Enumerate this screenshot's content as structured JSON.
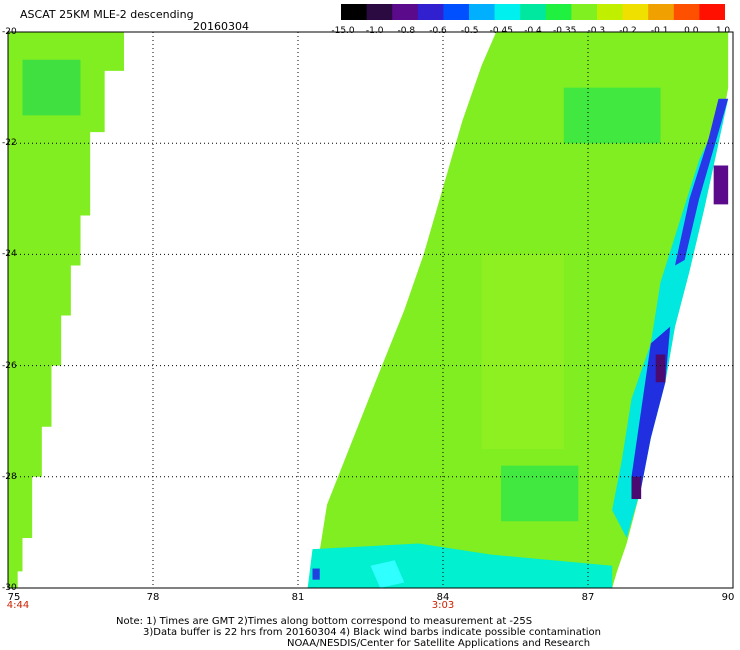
{
  "header": {
    "title": "ASCAT 25KM MLE-2 descending",
    "date": "20160304"
  },
  "colorbar": {
    "labels": [
      "-15.0",
      "-1.0",
      "-0.8",
      "-0.6",
      "-0.5",
      "-0.45",
      "-0.4",
      "-0.35",
      "-0.3",
      "-0.2",
      "-0.1",
      "0.0",
      "1.0"
    ],
    "colors": [
      "#000000",
      "#2a0a40",
      "#5a0a8a",
      "#3020d0",
      "#0050ff",
      "#00b0ff",
      "#00f0f0",
      "#00e8a0",
      "#20f040",
      "#80f020",
      "#c0f000",
      "#f0e000",
      "#f0a000",
      "#ff5000",
      "#ff1000"
    ]
  },
  "map": {
    "lon_range": [
      75,
      90
    ],
    "lat_range": [
      -30,
      -20
    ],
    "lon_ticks": [
      "75",
      "78",
      "81",
      "84",
      "87",
      "90"
    ],
    "lat_ticks": [
      "-20",
      "-22",
      "-24",
      "-26",
      "-28",
      "-30"
    ],
    "time_labels": [
      {
        "lon": 75,
        "text": "4:44"
      },
      {
        "lon": 84,
        "text": "3:03"
      }
    ],
    "swaths": [
      {
        "name": "west-swath",
        "polygon": [
          [
            75,
            -20
          ],
          [
            77.4,
            -20
          ],
          [
            77.4,
            -20.7
          ],
          [
            77,
            -20.7
          ],
          [
            77,
            -21.8
          ],
          [
            76.7,
            -21.8
          ],
          [
            76.7,
            -23.3
          ],
          [
            76.5,
            -23.3
          ],
          [
            76.5,
            -24.2
          ],
          [
            76.3,
            -24.2
          ],
          [
            76.3,
            -25.1
          ],
          [
            76.1,
            -25.1
          ],
          [
            76.1,
            -26
          ],
          [
            75.9,
            -26
          ],
          [
            75.9,
            -27.1
          ],
          [
            75.7,
            -27.1
          ],
          [
            75.7,
            -28
          ],
          [
            75.5,
            -28
          ],
          [
            75.5,
            -29.1
          ],
          [
            75.3,
            -29.1
          ],
          [
            75.3,
            -29.7
          ],
          [
            75.2,
            -29.7
          ],
          [
            75.2,
            -30
          ],
          [
            75,
            -30
          ]
        ]
      },
      {
        "name": "east-swath",
        "polygon": [
          [
            81.2,
            -30
          ],
          [
            81.4,
            -29.6
          ],
          [
            81.6,
            -28.5
          ],
          [
            82.1,
            -27.4
          ],
          [
            82.6,
            -26.3
          ],
          [
            83.2,
            -25
          ],
          [
            83.6,
            -24
          ],
          [
            84,
            -22.8
          ],
          [
            84.4,
            -21.6
          ],
          [
            84.8,
            -20.6
          ],
          [
            85.1,
            -20
          ],
          [
            89.9,
            -20
          ],
          [
            89.9,
            -21
          ],
          [
            89.7,
            -22
          ],
          [
            89.4,
            -23.2
          ],
          [
            89.1,
            -24.3
          ],
          [
            88.8,
            -25.3
          ],
          [
            88.6,
            -26.3
          ],
          [
            88.3,
            -27.3
          ],
          [
            88.1,
            -28.2
          ],
          [
            87.8,
            -29.2
          ],
          [
            87.6,
            -29.7
          ],
          [
            87.5,
            -30
          ]
        ]
      }
    ],
    "patches": [
      {
        "name": "cyan-bottom-band",
        "color": "#00f0d0",
        "polygon": [
          [
            81.3,
            -29.3
          ],
          [
            83.5,
            -29.2
          ],
          [
            85,
            -29.4
          ],
          [
            87.5,
            -29.6
          ],
          [
            87.5,
            -30
          ],
          [
            81.2,
            -30
          ]
        ]
      },
      {
        "name": "light-cyan-spot",
        "color": "#30ffff",
        "polygon": [
          [
            82.5,
            -29.6
          ],
          [
            83,
            -29.5
          ],
          [
            83.2,
            -29.9
          ],
          [
            82.7,
            -30
          ]
        ]
      },
      {
        "name": "blue-spot-sw",
        "color": "#2040e0",
        "polygon": [
          [
            81.3,
            -29.65
          ],
          [
            81.45,
            -29.65
          ],
          [
            81.45,
            -29.85
          ],
          [
            81.3,
            -29.85
          ]
        ]
      },
      {
        "name": "cyan-coast-band",
        "color": "#00e8e0",
        "polygon": [
          [
            89.9,
            -21.2
          ],
          [
            89.3,
            -22.3
          ],
          [
            88.9,
            -23.4
          ],
          [
            88.5,
            -24.5
          ],
          [
            88.3,
            -25.6
          ],
          [
            87.9,
            -26.6
          ],
          [
            87.7,
            -27.7
          ],
          [
            87.5,
            -28.6
          ],
          [
            87.8,
            -29.1
          ],
          [
            88.1,
            -28.2
          ],
          [
            88.3,
            -27.3
          ],
          [
            88.6,
            -26.3
          ],
          [
            88.8,
            -25.3
          ],
          [
            89.1,
            -24.3
          ],
          [
            89.4,
            -23.2
          ],
          [
            89.7,
            -22
          ]
        ]
      },
      {
        "name": "blue-coast-band",
        "color": "#2838e8",
        "polygon": [
          [
            89.9,
            -21.2
          ],
          [
            89.6,
            -22.1
          ],
          [
            89.3,
            -23
          ],
          [
            89,
            -24.1
          ],
          [
            88.8,
            -24.2
          ],
          [
            89.1,
            -23
          ],
          [
            89.5,
            -21.9
          ],
          [
            89.7,
            -21.2
          ]
        ]
      },
      {
        "name": "purple-patch-north",
        "color": "#5a0a8a",
        "polygon": [
          [
            89.6,
            -22.4
          ],
          [
            89.9,
            -22.4
          ],
          [
            89.9,
            -23.1
          ],
          [
            89.6,
            -23.1
          ]
        ]
      },
      {
        "name": "blue-patch-mid",
        "color": "#2030e0",
        "polygon": [
          [
            88.3,
            -25.6
          ],
          [
            88.7,
            -25.3
          ],
          [
            88.6,
            -26.3
          ],
          [
            88.3,
            -27.3
          ],
          [
            88.1,
            -28.2
          ],
          [
            87.9,
            -28
          ],
          [
            88.1,
            -26.8
          ]
        ]
      },
      {
        "name": "purple-patch-mid",
        "color": "#4a0a70",
        "polygon": [
          [
            88.4,
            -25.8
          ],
          [
            88.6,
            -25.8
          ],
          [
            88.6,
            -26.3
          ],
          [
            88.4,
            -26.3
          ]
        ]
      },
      {
        "name": "purple-patch-south",
        "color": "#4a0a70",
        "polygon": [
          [
            87.9,
            -28.0
          ],
          [
            88.1,
            -28.0
          ],
          [
            88.1,
            -28.4
          ],
          [
            87.9,
            -28.4
          ]
        ]
      },
      {
        "name": "yellowgreen-patch-a",
        "color": "#8ef020",
        "polygon": [
          [
            84.8,
            -24
          ],
          [
            86.5,
            -24
          ],
          [
            86.5,
            -27.5
          ],
          [
            84.8,
            -27.5
          ]
        ]
      },
      {
        "name": "green-patch-b",
        "color": "#40e840",
        "polygon": [
          [
            86.5,
            -21
          ],
          [
            88.5,
            -21
          ],
          [
            88.5,
            -22
          ],
          [
            86.5,
            -22
          ]
        ]
      },
      {
        "name": "green-patch-c",
        "color": "#40e840",
        "polygon": [
          [
            85.2,
            -27.8
          ],
          [
            86.8,
            -27.8
          ],
          [
            86.8,
            -28.8
          ],
          [
            85.2,
            -28.8
          ]
        ]
      },
      {
        "name": "green-patch-west",
        "color": "#40e040",
        "polygon": [
          [
            75.3,
            -20.5
          ],
          [
            76.5,
            -20.5
          ],
          [
            76.5,
            -21.5
          ],
          [
            75.3,
            -21.5
          ]
        ]
      }
    ]
  },
  "notes": {
    "line1": "Note: 1) Times are GMT 2)Times along bottom correspond to measurement at -25S",
    "line2": "3)Data buffer is 22 hrs from 20160304 4) Black wind barbs indicate possible contamination",
    "line3": "NOAA/NESDIS/Center for Satellite Applications and Research"
  }
}
